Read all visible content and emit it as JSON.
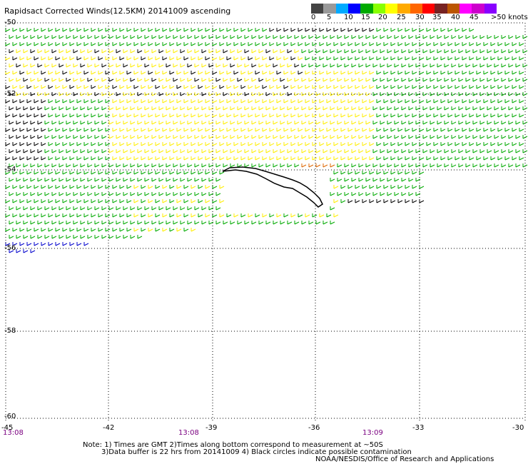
{
  "title": "Rapidsact Corrected Winds(12.5KM) 20141009 ascending",
  "legend": {
    "colors": [
      "#444444",
      "#999999",
      "#00aaff",
      "#0000ff",
      "#00aa00",
      "#88ff00",
      "#ffff00",
      "#ffaa00",
      "#ff6600",
      "#ff0000",
      "#772222",
      "#bb5500",
      "#ff00ff",
      "#cc00cc",
      "#8800ff"
    ],
    "labels": [
      "0",
      "5",
      "10",
      "15",
      "20",
      "25",
      "30",
      "35",
      "40",
      "45",
      ">50 knots"
    ],
    "unit": "knots"
  },
  "map": {
    "lat_labels": [
      "-50",
      "-52",
      "-54",
      "-56",
      "-58",
      "-60"
    ],
    "lon_labels": [
      "-45",
      "-42",
      "-39",
      "-36",
      "-33",
      "-30"
    ],
    "time_labels": [
      "13:08",
      "13:08",
      "13:09"
    ],
    "swath_colors": {
      "black": "#000000",
      "green": "#00aa00",
      "yellow": "#ffee00",
      "orange": "#dd6600",
      "blue": "#0000cc"
    }
  },
  "notes": {
    "line1": "Note: 1) Times are GMT 2)Times along bottom correspond to measurement at ~50S",
    "line2": "3)Data buffer is 22 hrs from 20141009 4) Black circles indicate possible contamination",
    "line3": "NOAA/NESDIS/Office of Research and Applications"
  }
}
